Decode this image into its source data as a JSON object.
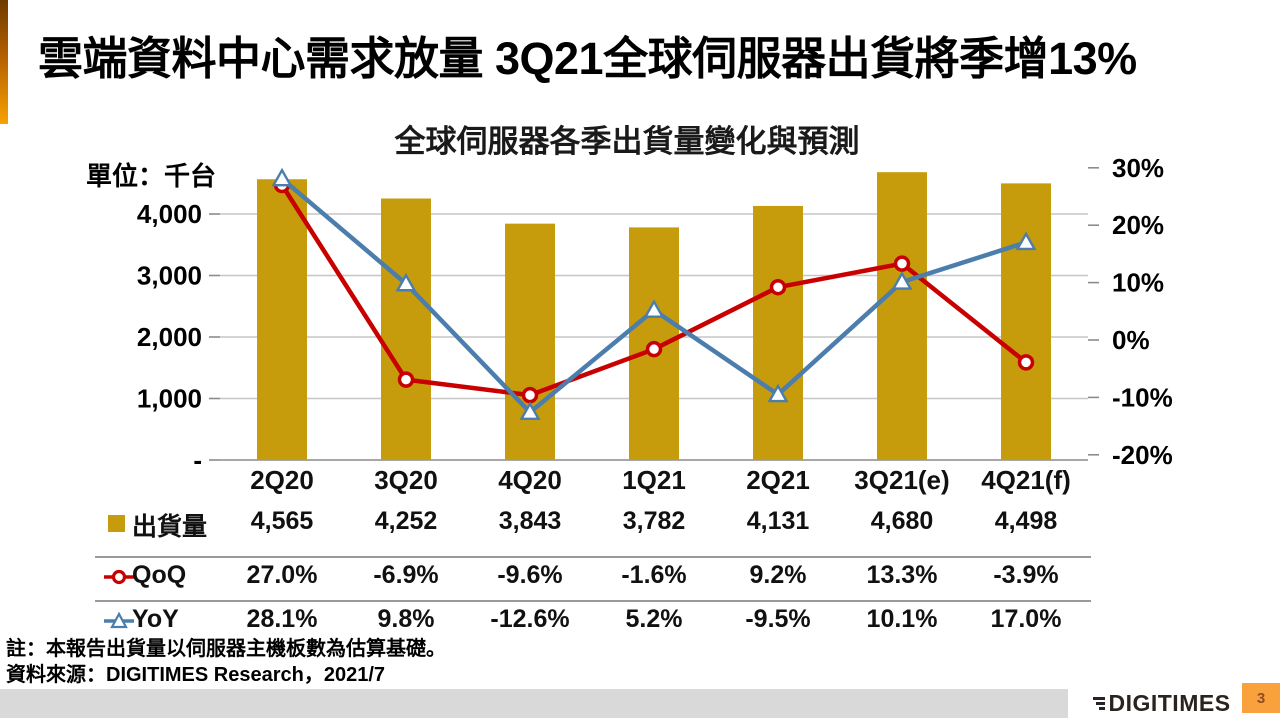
{
  "slide": {
    "title": "雲端資料中心需求放量  3Q21全球伺服器出貨將季增13%",
    "note_line1": "註：本報告出貨量以伺服器主機板數為估算基礎。",
    "note_line2": "資料來源：DIGITIMES Research，2021/7",
    "footer_logo": "DIGITIMES",
    "page_number": "3"
  },
  "chart_data": {
    "type": "combo bar+line",
    "title": "全球伺服器各季出貨量變化與預測",
    "unit_label": "單位：千台",
    "categories": [
      "2Q20",
      "3Q20",
      "4Q20",
      "1Q21",
      "2Q21",
      "3Q21(e)",
      "4Q21(f)"
    ],
    "series": [
      {
        "name": "出貨量",
        "type": "bar",
        "axis": "left",
        "color": "#C69C0D",
        "values": [
          4565,
          4252,
          3843,
          3782,
          4131,
          4680,
          4498
        ],
        "labels": [
          "4,565",
          "4,252",
          "3,843",
          "3,782",
          "4,131",
          "4,680",
          "4,498"
        ]
      },
      {
        "name": "QoQ",
        "type": "line",
        "marker": "circle",
        "axis": "right",
        "color": "#C80000",
        "values": [
          27.0,
          -6.9,
          -9.6,
          -1.6,
          9.2,
          13.3,
          -3.9
        ],
        "labels": [
          "27.0%",
          "-6.9%",
          "-9.6%",
          "-1.6%",
          "9.2%",
          "13.3%",
          "-3.9%"
        ]
      },
      {
        "name": "YoY",
        "type": "line",
        "marker": "triangle",
        "axis": "right",
        "color": "#4B7DAD",
        "values": [
          28.1,
          9.8,
          -12.6,
          5.2,
          -9.5,
          10.1,
          17.0
        ],
        "labels": [
          "28.1%",
          "9.8%",
          "-12.6%",
          "5.2%",
          "-9.5%",
          "10.1%",
          "17.0%"
        ]
      }
    ],
    "left_axis": {
      "range": [
        0,
        5000
      ],
      "ticks": [
        {
          "value": 4000,
          "label": "4,000"
        },
        {
          "value": 3000,
          "label": "3,000"
        },
        {
          "value": 2000,
          "label": "2,000"
        },
        {
          "value": 1000,
          "label": "1,000"
        },
        {
          "value": 0,
          "label": "-"
        }
      ]
    },
    "right_axis": {
      "range": [
        -22,
        32
      ],
      "ticks": [
        {
          "value": 30,
          "label": "30%"
        },
        {
          "value": 20,
          "label": "20%"
        },
        {
          "value": 10,
          "label": "10%"
        },
        {
          "value": 0,
          "label": "0%"
        },
        {
          "value": -10,
          "label": "-10%"
        },
        {
          "value": -20,
          "label": "-20%"
        }
      ]
    },
    "grid": true,
    "legend_position": "table-left"
  },
  "theme": {
    "grid_color": "#C6C6C6",
    "axis_color": "#8C8C8C",
    "footer_bar_color": "#D9D9D9",
    "page_box_color": "#F9A13C",
    "accent_top": "#6E3A00",
    "accent_bottom": "#F8A100"
  }
}
